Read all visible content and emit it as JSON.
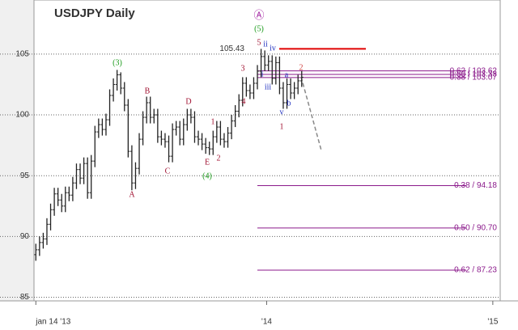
{
  "chart_data": {
    "type": "ohlc",
    "title": "USDJPY Daily",
    "color": "#222222",
    "x": [
      0,
      4,
      8,
      12,
      16,
      20,
      24,
      28,
      32,
      36,
      40,
      44,
      48,
      52,
      56,
      60,
      64,
      68,
      72,
      76,
      80,
      84,
      88,
      92,
      96,
      100,
      104,
      108,
      112,
      116,
      120,
      124,
      128,
      132,
      136,
      140,
      144,
      148,
      152,
      156,
      160,
      164,
      168,
      172,
      176,
      180,
      184,
      188,
      192,
      196,
      200,
      204,
      208,
      212,
      216,
      220,
      224,
      228,
      232,
      236,
      240,
      244,
      248,
      252,
      256,
      260,
      264,
      268,
      272,
      276,
      280,
      284,
      288
    ],
    "open": [
      88.5,
      88.9,
      89.5,
      89.8,
      91.0,
      92.2,
      93.5,
      93.0,
      92.5,
      93.6,
      93.4,
      94.4,
      95.5,
      94.8,
      96.0,
      93.6,
      96.2,
      98.6,
      99.2,
      98.8,
      99.6,
      101.6,
      102.5,
      103.3,
      102.2,
      100.8,
      97.0,
      94.4,
      95.6,
      98.0,
      99.8,
      101.0,
      99.8,
      100.0,
      98.2,
      98.0,
      97.8,
      96.6,
      98.8,
      99.0,
      98.0,
      99.2,
      100.0,
      99.8,
      98.2,
      98.0,
      97.6,
      97.3,
      97.2,
      98.2,
      99.0,
      98.0,
      97.8,
      98.5,
      99.5,
      100.3,
      101.2,
      102.6,
      102.0,
      101.8,
      102.6,
      103.6,
      104.8,
      104.1,
      104.4,
      103.0,
      104.3,
      102.2,
      101.0,
      102.5,
      101.8,
      102.2,
      102.8
    ],
    "high": [
      89.4,
      90.0,
      90.3,
      91.5,
      92.7,
      94.0,
      94.0,
      93.5,
      94.1,
      94.1,
      94.9,
      96.0,
      96.0,
      96.5,
      96.5,
      96.7,
      99.1,
      99.7,
      99.7,
      100.1,
      102.1,
      103.0,
      103.7,
      103.5,
      102.7,
      101.3,
      97.5,
      96.1,
      98.5,
      100.3,
      101.5,
      101.5,
      100.5,
      100.5,
      98.7,
      98.5,
      98.3,
      99.3,
      99.5,
      99.5,
      99.7,
      100.5,
      100.5,
      100.3,
      98.7,
      98.5,
      98.1,
      97.8,
      98.7,
      99.5,
      99.5,
      98.5,
      99.0,
      100.0,
      100.8,
      101.7,
      103.1,
      103.1,
      102.5,
      103.1,
      104.1,
      105.43,
      105.3,
      104.9,
      104.9,
      104.8,
      104.8,
      102.7,
      103.0,
      103.0,
      102.7,
      103.3,
      103.6
    ],
    "low": [
      88.0,
      88.4,
      89.0,
      89.3,
      90.5,
      91.7,
      92.5,
      92.0,
      92.0,
      92.9,
      92.9,
      93.9,
      94.3,
      94.3,
      93.1,
      93.1,
      95.7,
      98.1,
      98.3,
      98.3,
      99.1,
      101.1,
      102.0,
      101.7,
      100.3,
      96.5,
      93.8,
      93.9,
      95.1,
      97.5,
      99.3,
      99.3,
      99.3,
      97.7,
      97.5,
      97.3,
      96.1,
      96.1,
      98.3,
      97.5,
      97.5,
      98.7,
      99.3,
      97.7,
      97.5,
      97.1,
      96.8,
      96.7,
      96.7,
      97.7,
      97.5,
      97.3,
      97.3,
      98.0,
      99.0,
      99.8,
      100.7,
      101.5,
      101.3,
      101.3,
      102.1,
      103.1,
      103.6,
      103.6,
      102.5,
      102.5,
      101.7,
      100.5,
      100.5,
      101.3,
      101.3,
      101.7,
      102.3
    ],
    "close": [
      88.9,
      89.5,
      89.8,
      91.0,
      92.2,
      93.5,
      93.0,
      92.5,
      93.6,
      93.4,
      94.4,
      95.5,
      94.8,
      96.0,
      93.6,
      96.2,
      98.6,
      99.2,
      98.8,
      99.6,
      101.6,
      102.5,
      103.3,
      102.2,
      100.8,
      97.0,
      94.4,
      95.6,
      98.0,
      99.8,
      101.0,
      99.8,
      100.0,
      98.2,
      98.0,
      97.8,
      96.6,
      98.8,
      99.0,
      98.0,
      99.2,
      100.0,
      99.8,
      98.2,
      98.0,
      97.6,
      97.3,
      97.2,
      98.2,
      99.0,
      98.0,
      97.8,
      98.5,
      99.5,
      100.3,
      101.2,
      102.6,
      102.0,
      101.8,
      102.6,
      103.6,
      104.8,
      104.1,
      104.4,
      103.0,
      104.3,
      102.2,
      101.0,
      102.5,
      101.8,
      102.2,
      102.8,
      103.1
    ],
    "xlim": [
      -2,
      503
    ],
    "ylim": [
      84.7,
      109.45
    ],
    "xticks": [
      {
        "value": 0,
        "label": "jan 14 '13"
      },
      {
        "value": 250,
        "label": "'14"
      },
      {
        "value": 495,
        "label": "'15"
      }
    ],
    "yticks": [
      85,
      90,
      95,
      100,
      105
    ],
    "grid": true,
    "peak": {
      "value": 105.43,
      "label": "105.43",
      "color": "#e00000"
    },
    "fib_color": "#8b1a8b",
    "fib_levels": [
      {
        "value": 103.62,
        "label": "0.62 / 103.62"
      },
      {
        "value": 103.33,
        "label": "0.50 / 103.33"
      },
      {
        "value": 103.07,
        "label": "0.38 / 103.07"
      },
      {
        "value": 94.18,
        "label": "0.38 / 94.18"
      },
      {
        "value": 90.7,
        "label": "0.50 / 90.70"
      },
      {
        "value": 87.23,
        "label": "0.62 / 87.23"
      }
    ],
    "annotations": [
      {
        "text": "(3)",
        "color": "#1a9a1a"
      },
      {
        "text": "B",
        "color": "#a01030"
      },
      {
        "text": "A",
        "color": "#a01030"
      },
      {
        "text": "C",
        "color": "#a01030"
      },
      {
        "text": "D",
        "color": "#a01030"
      },
      {
        "text": "E",
        "color": "#a01030"
      },
      {
        "text": "(4)",
        "color": "#1a9a1a"
      },
      {
        "text": "1",
        "color": "#a01030"
      },
      {
        "text": "2",
        "color": "#a01030"
      },
      {
        "text": "3",
        "color": "#a01030"
      },
      {
        "text": "4",
        "color": "#a01030"
      },
      {
        "text": "5",
        "color": "#a01030"
      },
      {
        "text": "(5)",
        "color": "#1a9a1a"
      },
      {
        "text": "Ⓐ",
        "color": "#a020a0"
      },
      {
        "text": "i",
        "color": "#2030c0"
      },
      {
        "text": "ii",
        "color": "#2030c0"
      },
      {
        "text": "iii",
        "color": "#2030c0"
      },
      {
        "text": "iv",
        "color": "#2030c0"
      },
      {
        "text": "v",
        "color": "#2030c0"
      },
      {
        "text": "a",
        "color": "#2030c0"
      },
      {
        "text": "b",
        "color": "#2030c0"
      },
      {
        "text": "1",
        "color": "#a01030"
      },
      {
        "text": "2",
        "color": "#d04040"
      }
    ]
  }
}
